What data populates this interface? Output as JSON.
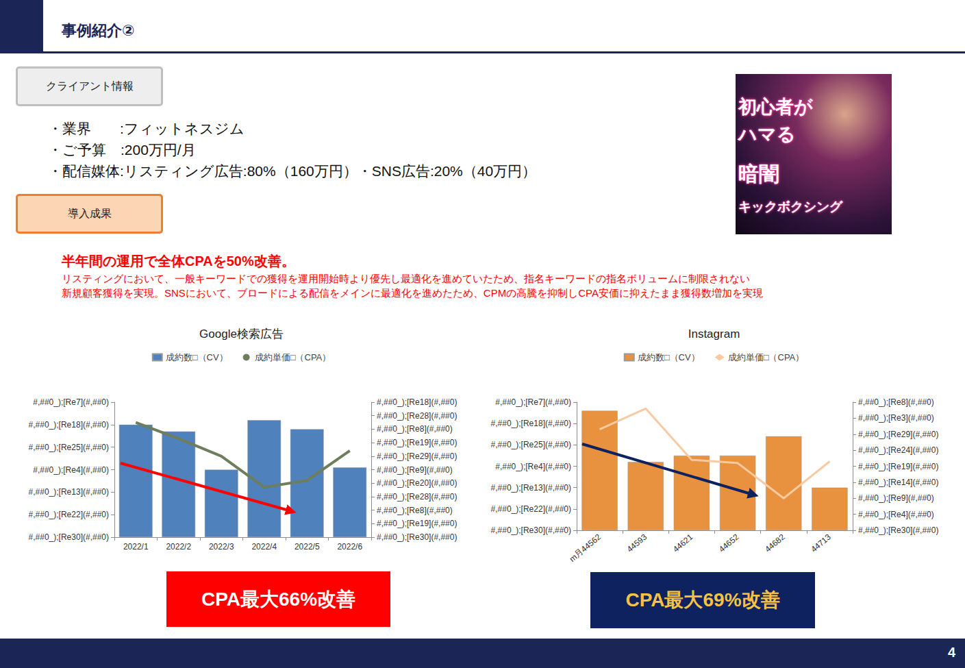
{
  "header": {
    "title": "事例紹介②",
    "page": "4"
  },
  "client": {
    "label": "クライアント情報",
    "items": [
      "・業界　　:フィットネスジム",
      "・ご予算　:200万円/月",
      "・配信媒体:リスティング広告:80%（160万円）・SNS広告:20%（40万円）"
    ]
  },
  "results": {
    "label": "導入成果",
    "headline": "半年間の運用で全体CPAを50%改善。",
    "body": [
      "リスティングにおいて、一般キーワードでの獲得を運用開始時より優先し最適化を進めていたため、指名キーワードの指名ボリュームに制限されない",
      "新規顧客獲得を実現。SNSにおいて、ブロードによる配信をメインに最適化を進めたため、CPMの高騰を抑制しCPA安価に抑えたまま獲得数増加を実現"
    ]
  },
  "image": {
    "texts": [
      "初心者が",
      "ハマる",
      "暗闇",
      "キックボクシング"
    ]
  },
  "callouts": [
    "CPA最大66%改善",
    "CPA最大69%改善"
  ],
  "chart_data": [
    {
      "type": "bar",
      "title": "Google検索広告",
      "categories": [
        "2022/1",
        "2022/2",
        "2022/3",
        "2022/4",
        "2022/5",
        "2022/6"
      ],
      "series": [
        {
          "name": "成約数□（CV）",
          "type": "bar",
          "color": "#4f81bd",
          "values": [
            5.0,
            4.7,
            3.0,
            5.2,
            4.8,
            3.1
          ]
        },
        {
          "name": "成約単価□（CPA）",
          "type": "line",
          "color": "#6e7d5c",
          "marker": "circle",
          "axis": "y2",
          "values": [
            8.5,
            7.3,
            6.0,
            3.7,
            4.2,
            6.4
          ]
        }
      ],
      "ylim": [
        0,
        6
      ],
      "yticks": [
        {
          "value": 0,
          "label": "#,##0_);[Re30](#,##0)"
        },
        {
          "value": 1,
          "label": "#,##0_);[Re22](#,##0)"
        },
        {
          "value": 2,
          "label": "#,##0_);[Re13](#,##0)"
        },
        {
          "value": 3,
          "label": "#,##0_);[Re4](#,##0)"
        },
        {
          "value": 4,
          "label": "#,##0_);[Re25](#,##0)"
        },
        {
          "value": 5,
          "label": "#,##0_);[Re18](#,##0)"
        },
        {
          "value": 6,
          "label": "#,##0_);[Re7](#,##0)"
        }
      ],
      "y2lim": [
        0,
        10
      ],
      "y2ticks": [
        {
          "value": 0,
          "label": "#,##0_);[Re30](#,##0)"
        },
        {
          "value": 1,
          "label": "#,##0_);[Re19](#,##0)"
        },
        {
          "value": 2,
          "label": "#,##0_);[Re8](#,##0)"
        },
        {
          "value": 3,
          "label": "#,##0_);[Re28](#,##0)"
        },
        {
          "value": 4,
          "label": "#,##0_);[Re20](#,##0)"
        },
        {
          "value": 5,
          "label": "#,##0_);[Re9](#,##0)"
        },
        {
          "value": 6,
          "label": "#,##0_);[Re29](#,##0)"
        },
        {
          "value": 7,
          "label": "#,##0_);[Re19](#,##0)"
        },
        {
          "value": 8,
          "label": "#,##0_);[Re8](#,##0)"
        },
        {
          "value": 9,
          "label": "#,##0_);[Re28](#,##0)"
        },
        {
          "value": 10,
          "label": "#,##0_);[Re18](#,##0)"
        }
      ],
      "grid": false,
      "legend": "top"
    },
    {
      "type": "bar",
      "title": "Instagram",
      "categories": [
        "m月44562",
        "44593",
        "44621",
        "44652",
        "44682",
        "44713"
      ],
      "series": [
        {
          "name": "成約数□（CV）",
          "type": "bar",
          "color": "#e8913e",
          "values": [
            5.6,
            3.2,
            3.5,
            3.5,
            4.4,
            2.0
          ]
        },
        {
          "name": "成約単価□（CPA）",
          "type": "line",
          "color": "#f9c9a2",
          "marker": "diamond",
          "axis": "y2",
          "values": [
            6.3,
            7.6,
            4.4,
            4.2,
            2.0,
            4.3
          ]
        }
      ],
      "ylim": [
        0,
        6
      ],
      "yticks": [
        {
          "value": 0,
          "label": "#,##0_);[Re30](#,##0)"
        },
        {
          "value": 1,
          "label": "#,##0_);[Re22](#,##0)"
        },
        {
          "value": 2,
          "label": "#,##0_);[Re13](#,##0)"
        },
        {
          "value": 3,
          "label": "#,##0_);[Re4](#,##0)"
        },
        {
          "value": 4,
          "label": "#,##0_);[Re25](#,##0)"
        },
        {
          "value": 5,
          "label": "#,##0_);[Re18](#,##0)"
        },
        {
          "value": 6,
          "label": "#,##0_);[Re7](#,##0)"
        }
      ],
      "y2lim": [
        0,
        8
      ],
      "y2ticks": [
        {
          "value": 0,
          "label": "#,##0_);[Re30](#,##0)"
        },
        {
          "value": 1,
          "label": "#,##0_);[Re4](#,##0)"
        },
        {
          "value": 2,
          "label": "#,##0_);[Re9](#,##0)"
        },
        {
          "value": 3,
          "label": "#,##0_);[Re14](#,##0)"
        },
        {
          "value": 4,
          "label": "#,##0_);[Re19](#,##0)"
        },
        {
          "value": 5,
          "label": "#,##0_);[Re24](#,##0)"
        },
        {
          "value": 6,
          "label": "#,##0_);[Re29](#,##0)"
        },
        {
          "value": 7,
          "label": "#,##0_);[Re3](#,##0)"
        },
        {
          "value": 8,
          "label": "#,##0_);[Re8](#,##0)"
        }
      ],
      "grid": false,
      "legend": "top"
    }
  ]
}
